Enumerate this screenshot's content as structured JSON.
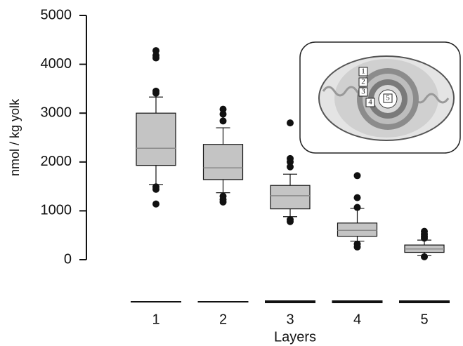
{
  "chart_data": {
    "type": "box",
    "y_label": "nmol / kg yolk",
    "x_label": "Layers",
    "categories": [
      "1",
      "2",
      "3",
      "4",
      "5"
    ],
    "ylim": [
      0,
      5000
    ],
    "yticks": [
      0,
      1000,
      2000,
      3000,
      4000,
      5000
    ],
    "box_color": "#c4c4c4",
    "median_color": "#8a8a8a",
    "boxes": [
      {
        "whisker_low": 1540,
        "q1": 1930,
        "median": 2280,
        "q3": 3000,
        "whisker_high": 3330,
        "outliers": [
          4280,
          4180,
          4130,
          3450,
          3410,
          1490,
          1440,
          1140
        ]
      },
      {
        "whisker_low": 1370,
        "q1": 1640,
        "median": 1880,
        "q3": 2360,
        "whisker_high": 2700,
        "outliers": [
          3080,
          2980,
          2840,
          1300,
          1230,
          1180
        ]
      },
      {
        "whisker_low": 880,
        "q1": 1040,
        "median": 1310,
        "q3": 1520,
        "whisker_high": 1750,
        "outliers": [
          2800,
          2070,
          2000,
          1900,
          820,
          780
        ]
      },
      {
        "whisker_low": 380,
        "q1": 480,
        "median": 600,
        "q3": 750,
        "whisker_high": 1050,
        "outliers": [
          1720,
          1270,
          1070,
          320,
          260
        ]
      },
      {
        "whisker_low": 80,
        "q1": 150,
        "median": 220,
        "q3": 300,
        "whisker_high": 400,
        "outliers": [
          580,
          520,
          480,
          440,
          60
        ]
      }
    ]
  },
  "inset": {
    "labels": [
      "1",
      "2",
      "3",
      "4",
      "5"
    ]
  }
}
